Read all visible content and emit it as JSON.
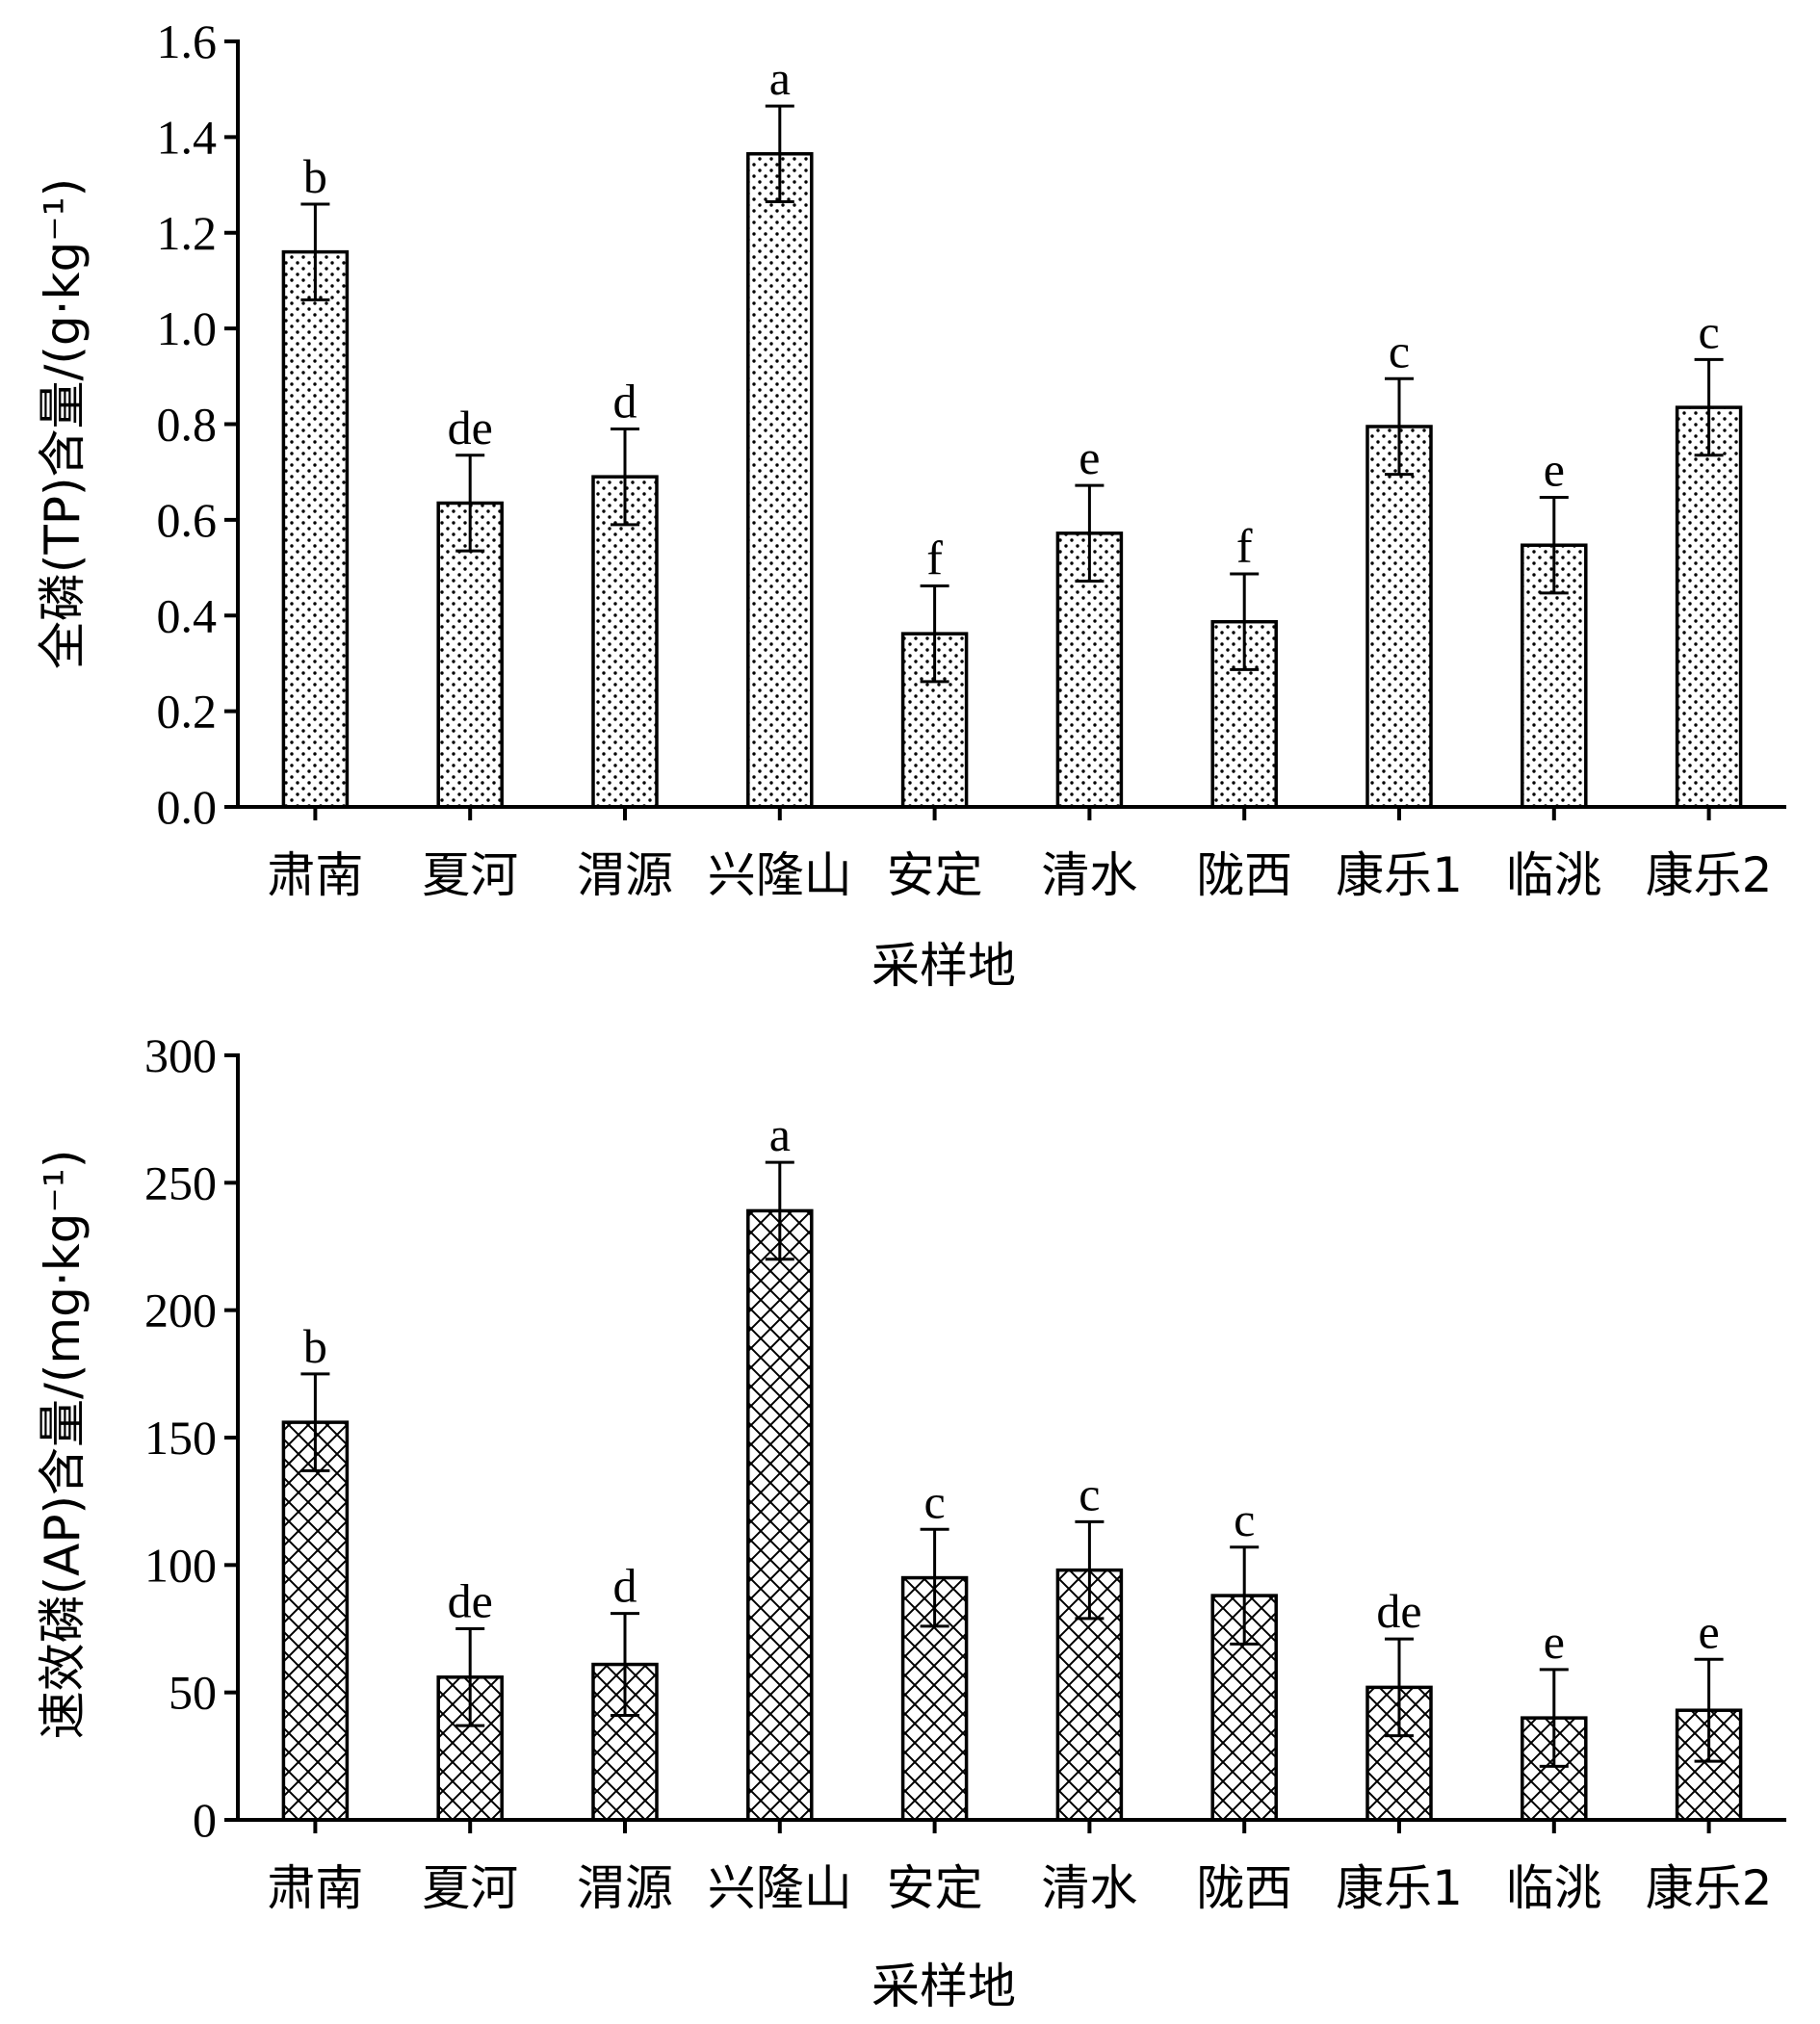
{
  "chart_data": [
    {
      "type": "bar",
      "pattern": "dots",
      "xlabel": "采样地",
      "ylabel": "全磷(TP)含量/(g·kg⁻¹)",
      "ylim": [
        0,
        1.6
      ],
      "yticks": [
        "0.0",
        "0.2",
        "0.4",
        "0.6",
        "0.8",
        "1.0",
        "1.2",
        "1.4",
        "1.6"
      ],
      "categories": [
        "肃南",
        "夏河",
        "渭源",
        "兴隆山",
        "安定",
        "清水",
        "陇西",
        "康乐1",
        "临洮",
        "康乐2"
      ],
      "values": [
        1.16,
        0.635,
        0.69,
        1.365,
        0.362,
        0.572,
        0.387,
        0.795,
        0.547,
        0.835
      ],
      "errors": [
        0.1,
        0.1,
        0.1,
        0.1,
        0.1,
        0.1,
        0.1,
        0.1,
        0.1,
        0.1
      ],
      "significance": [
        "b",
        "de",
        "d",
        "a",
        "f",
        "e",
        "f",
        "c",
        "e",
        "c"
      ]
    },
    {
      "type": "bar",
      "pattern": "crosshatch",
      "xlabel": "采样地",
      "ylabel": "速效磷(AP)含量/(mg·kg⁻¹)",
      "ylim": [
        0,
        300
      ],
      "yticks": [
        "0",
        "50",
        "100",
        "150",
        "200",
        "250",
        "300"
      ],
      "categories": [
        "肃南",
        "夏河",
        "渭源",
        "兴隆山",
        "安定",
        "清水",
        "陇西",
        "康乐1",
        "临洮",
        "康乐2"
      ],
      "values": [
        156,
        56,
        61,
        239,
        95,
        98,
        88,
        52,
        40,
        43
      ],
      "errors": [
        19,
        19,
        20,
        19,
        19,
        19,
        19,
        19,
        19,
        20
      ],
      "significance": [
        "b",
        "de",
        "d",
        "a",
        "c",
        "c",
        "c",
        "de",
        "e",
        "e"
      ]
    }
  ]
}
